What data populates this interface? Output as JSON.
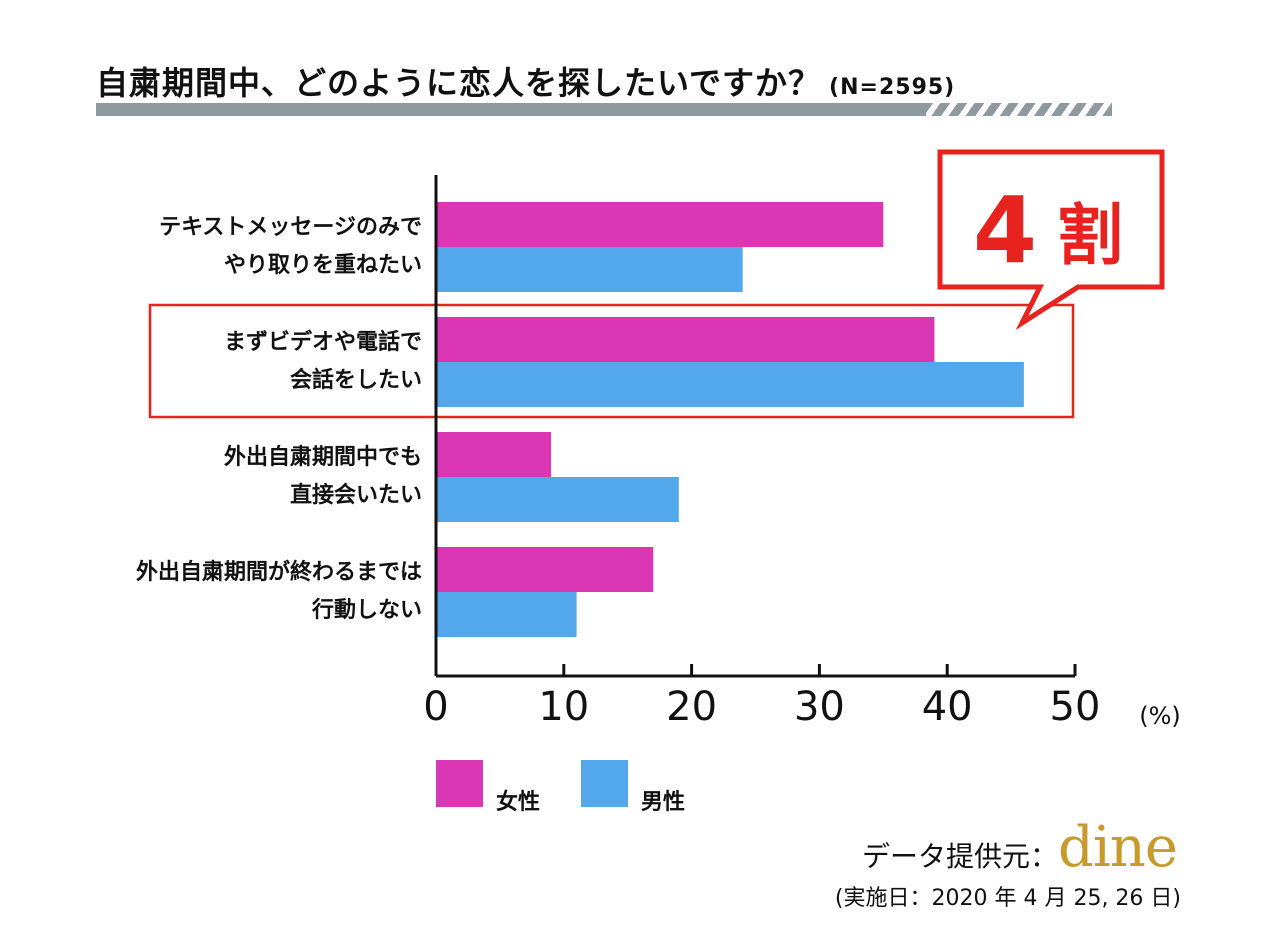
{
  "title": "自粛期間中、どのように恋人を探したいですか？",
  "sample": "(N=2595)",
  "unit": "(%)",
  "callout": {
    "number": "4",
    "text": "割",
    "color": "#e8221e"
  },
  "legend": [
    {
      "label": "女性",
      "color": "#db36b4"
    },
    {
      "label": "男性",
      "color": "#52a8ea"
    }
  ],
  "source_label": "データ提供元：",
  "source_logo": "dine",
  "date_note": "(実施日：2020 年 4 月 25, 26 日)",
  "chart_data": {
    "type": "bar",
    "orientation": "horizontal",
    "categories": [
      [
        "テキストメッセージのみで",
        "やり取りを重ねたい"
      ],
      [
        "まずビデオや電話で",
        "会話をしたい"
      ],
      [
        "外出自粛期間中でも",
        "直接会いたい"
      ],
      [
        "外出自粛期間が終わるまでは",
        "行動しない"
      ]
    ],
    "series": [
      {
        "name": "女性",
        "values": [
          35,
          39,
          9,
          17
        ],
        "color": "#db36b4"
      },
      {
        "name": "男性",
        "values": [
          24,
          46,
          19,
          11
        ],
        "color": "#52a8ea"
      }
    ],
    "xlim": [
      0,
      50
    ],
    "xticks": [
      0,
      10,
      20,
      30,
      40,
      50
    ],
    "highlight_category_index": 1,
    "grid": false
  }
}
